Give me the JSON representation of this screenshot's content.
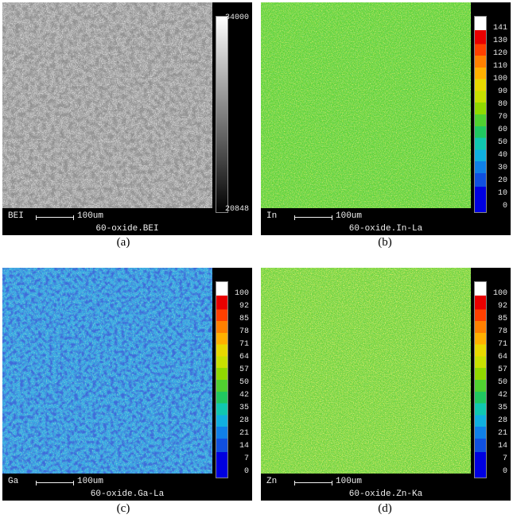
{
  "panels": [
    {
      "id": "a",
      "element_label": "BEI",
      "scale_text": "100um",
      "filename": "60-oxide.BEI",
      "caption": "(a)",
      "colorbar": {
        "type": "grayscale",
        "max_label": "34000",
        "min_label": "20848"
      },
      "map_base_color": "#c8c8c8"
    },
    {
      "id": "b",
      "element_label": "In",
      "scale_text": "100um",
      "filename": "60-oxide.In-La",
      "caption": "(b)",
      "colorbar": {
        "type": "rainbow",
        "ticks": [
          "141",
          "130",
          "120",
          "110",
          "100",
          "90",
          "80",
          "70",
          "60",
          "50",
          "40",
          "30",
          "20",
          "10",
          "0"
        ]
      },
      "map_base_color": "#5fd23a"
    },
    {
      "id": "c",
      "element_label": "Ga",
      "scale_text": "100um",
      "filename": "60-oxide.Ga-La",
      "caption": "(c)",
      "colorbar": {
        "type": "rainbow",
        "ticks": [
          "100",
          "92",
          "85",
          "78",
          "71",
          "64",
          "57",
          "50",
          "42",
          "35",
          "28",
          "21",
          "14",
          "7",
          "0"
        ]
      },
      "map_base_color": "#2fa8e0"
    },
    {
      "id": "d",
      "element_label": "Zn",
      "scale_text": "100um",
      "filename": "60-oxide.Zn-Ka",
      "caption": "(d)",
      "colorbar": {
        "type": "rainbow",
        "ticks": [
          "100",
          "92",
          "85",
          "78",
          "71",
          "64",
          "57",
          "50",
          "42",
          "35",
          "28",
          "21",
          "14",
          "7",
          "0"
        ]
      },
      "map_base_color": "#6ed23c"
    }
  ]
}
